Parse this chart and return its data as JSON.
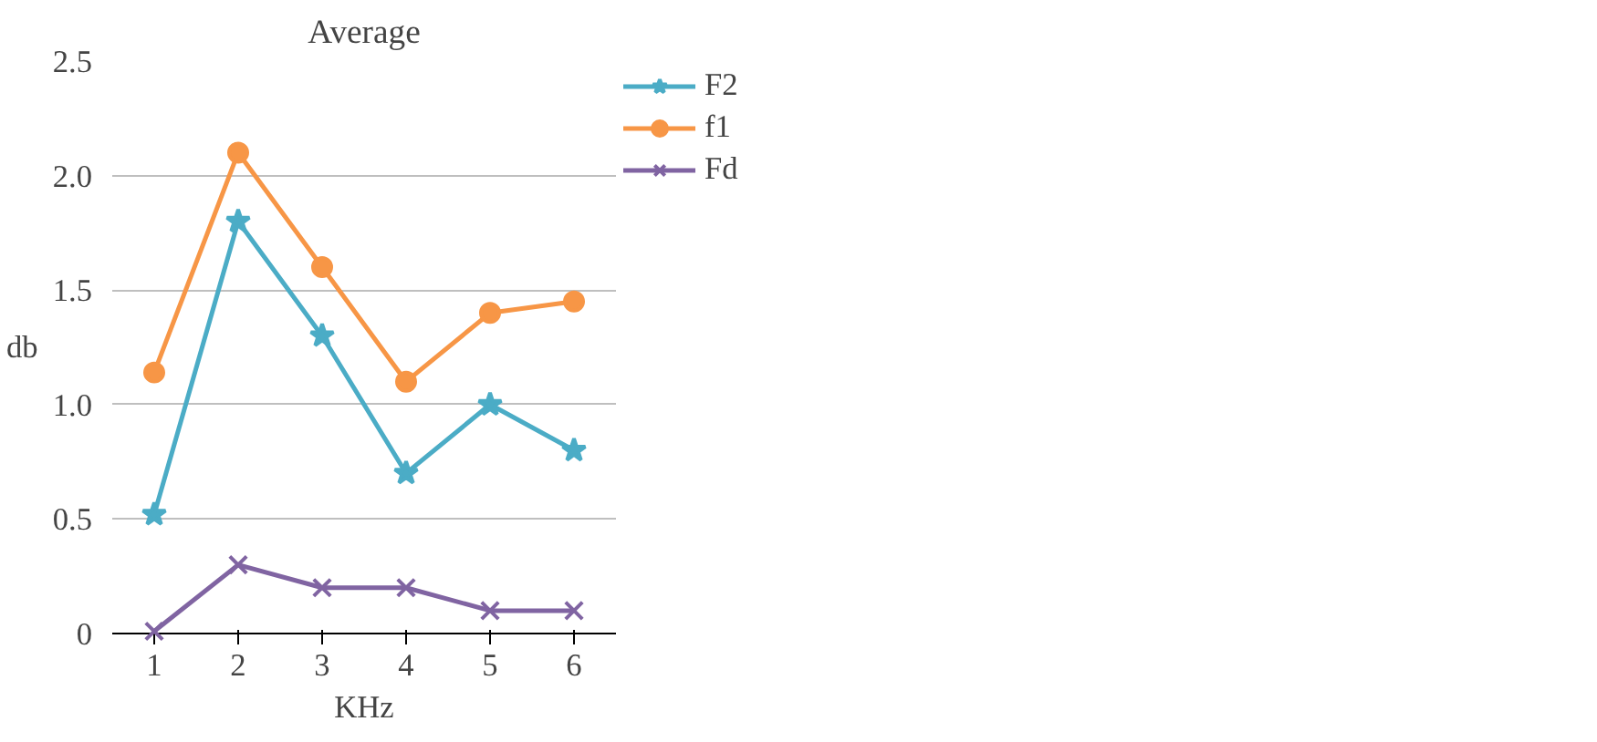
{
  "chart_data": {
    "type": "line",
    "title": "Average",
    "xlabel": "KHz",
    "ylabel": "db",
    "categories": [
      "1",
      "2",
      "3",
      "4",
      "5",
      "6"
    ],
    "series": [
      {
        "name": "F2",
        "color": "#4bacc6",
        "marker": "star",
        "values": [
          0.52,
          1.8,
          1.3,
          0.7,
          1.0,
          0.8
        ]
      },
      {
        "name": "f1",
        "color": "#f79646",
        "marker": "circle",
        "values": [
          1.14,
          2.1,
          1.6,
          1.1,
          1.4,
          1.45
        ]
      },
      {
        "name": "Fd",
        "color": "#8064a2",
        "marker": "cross",
        "values": [
          0.01,
          0.3,
          0.2,
          0.2,
          0.1,
          0.1
        ]
      }
    ],
    "ylim": [
      0,
      2.5
    ],
    "yticks": [
      0,
      {
        "value": 0.5,
        "label": "0.5"
      },
      {
        "value": 1.0,
        "label": "1.0"
      },
      {
        "value": 1.5,
        "label": "1.5"
      },
      {
        "value": 2.0,
        "label": "2.0"
      },
      {
        "value": 2.5,
        "label": "2.5"
      }
    ],
    "grid": "y",
    "legend": "right"
  }
}
